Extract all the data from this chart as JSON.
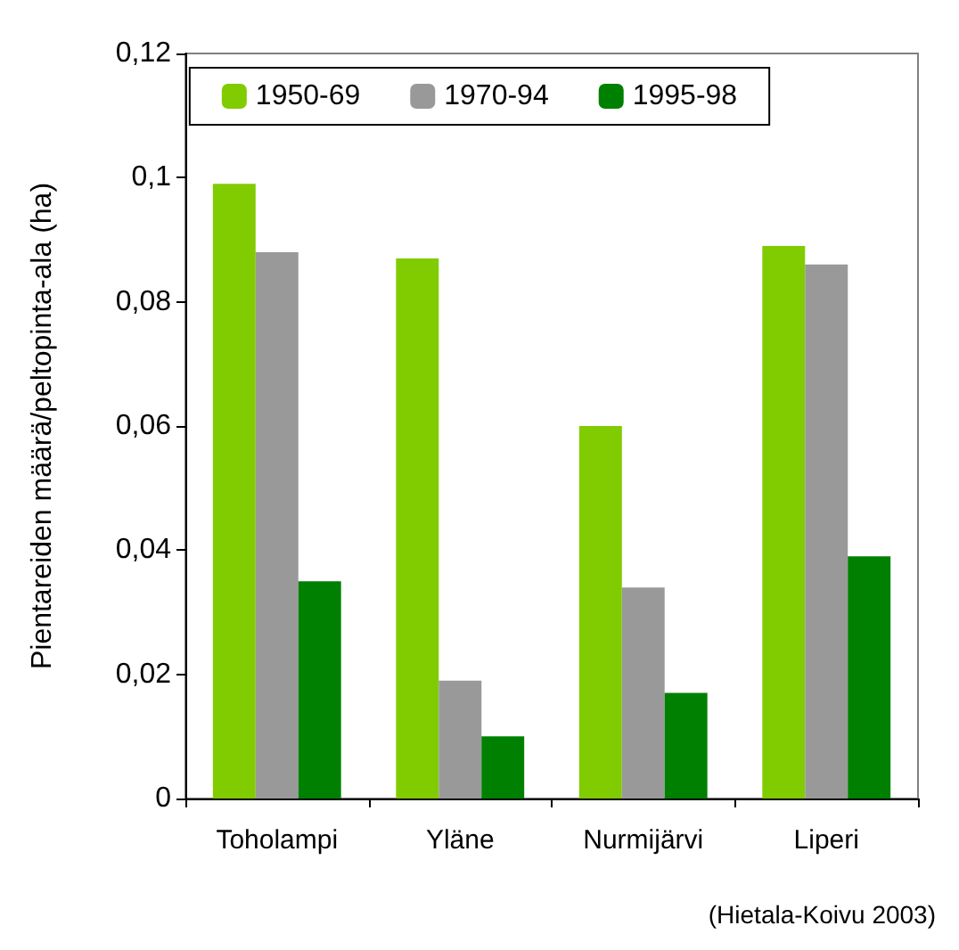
{
  "chart_data": {
    "type": "bar",
    "ylabel": "Pientareiden määrä/peltopinta-ala (ha)",
    "categories": [
      "Toholampi",
      "Yläne",
      "Nurmijärvi",
      "Liperi"
    ],
    "series": [
      {
        "name": "1950-69",
        "color": "#80cc00",
        "values": [
          0.099,
          0.087,
          0.06,
          0.089
        ]
      },
      {
        "name": "1970-94",
        "color": "#999999",
        "values": [
          0.088,
          0.019,
          0.034,
          0.086
        ]
      },
      {
        "name": "1995-98",
        "color": "#008000",
        "values": [
          0.035,
          0.01,
          0.017,
          0.039
        ]
      }
    ],
    "ylim": [
      0,
      0.12
    ],
    "yticks": [
      0,
      {
        "value": 0.02,
        "label": "0,02"
      },
      {
        "value": 0.04,
        "label": "0,04"
      },
      {
        "value": 0.06,
        "label": "0,06"
      },
      {
        "value": 0.08,
        "label": "0,08"
      },
      {
        "value": 0.1,
        "label": "0,1"
      },
      {
        "value": 0.12,
        "label": "0,12"
      }
    ],
    "grid": false,
    "legend": "top",
    "annotations": [
      "(Hietala-Koivu 2003)"
    ]
  }
}
